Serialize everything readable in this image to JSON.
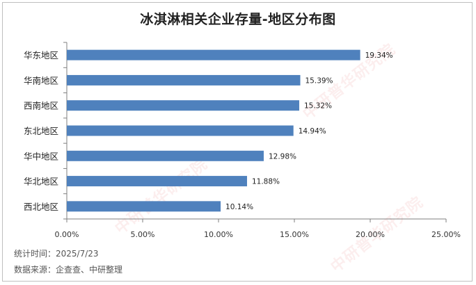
{
  "chart_data": {
    "type": "bar",
    "orientation": "horizontal",
    "title": "冰淇淋相关企业存量-地区分布图",
    "categories": [
      "华东地区",
      "华南地区",
      "西南地区",
      "东北地区",
      "华中地区",
      "华北地区",
      "西北地区"
    ],
    "values": [
      19.34,
      15.39,
      15.32,
      14.94,
      12.98,
      11.88,
      10.14
    ],
    "value_labels": [
      "19.34%",
      "15.39%",
      "15.32%",
      "14.94%",
      "12.98%",
      "11.88%",
      "10.14%"
    ],
    "xlim": [
      0,
      25
    ],
    "xticks": [
      0,
      5,
      10,
      15,
      20,
      25
    ],
    "xtick_labels": [
      "0.00%",
      "5.00%",
      "10.00%",
      "15.00%",
      "20.00%",
      "25.00%"
    ],
    "xlabel": "",
    "ylabel": "",
    "grid": false,
    "legend": "none",
    "bar_color": "#4f81bd"
  },
  "footer": {
    "stat_time": "统计时间：2025/7/23",
    "source": "数据来源：企查查、中研整理"
  },
  "watermark": "中研普华研究院"
}
